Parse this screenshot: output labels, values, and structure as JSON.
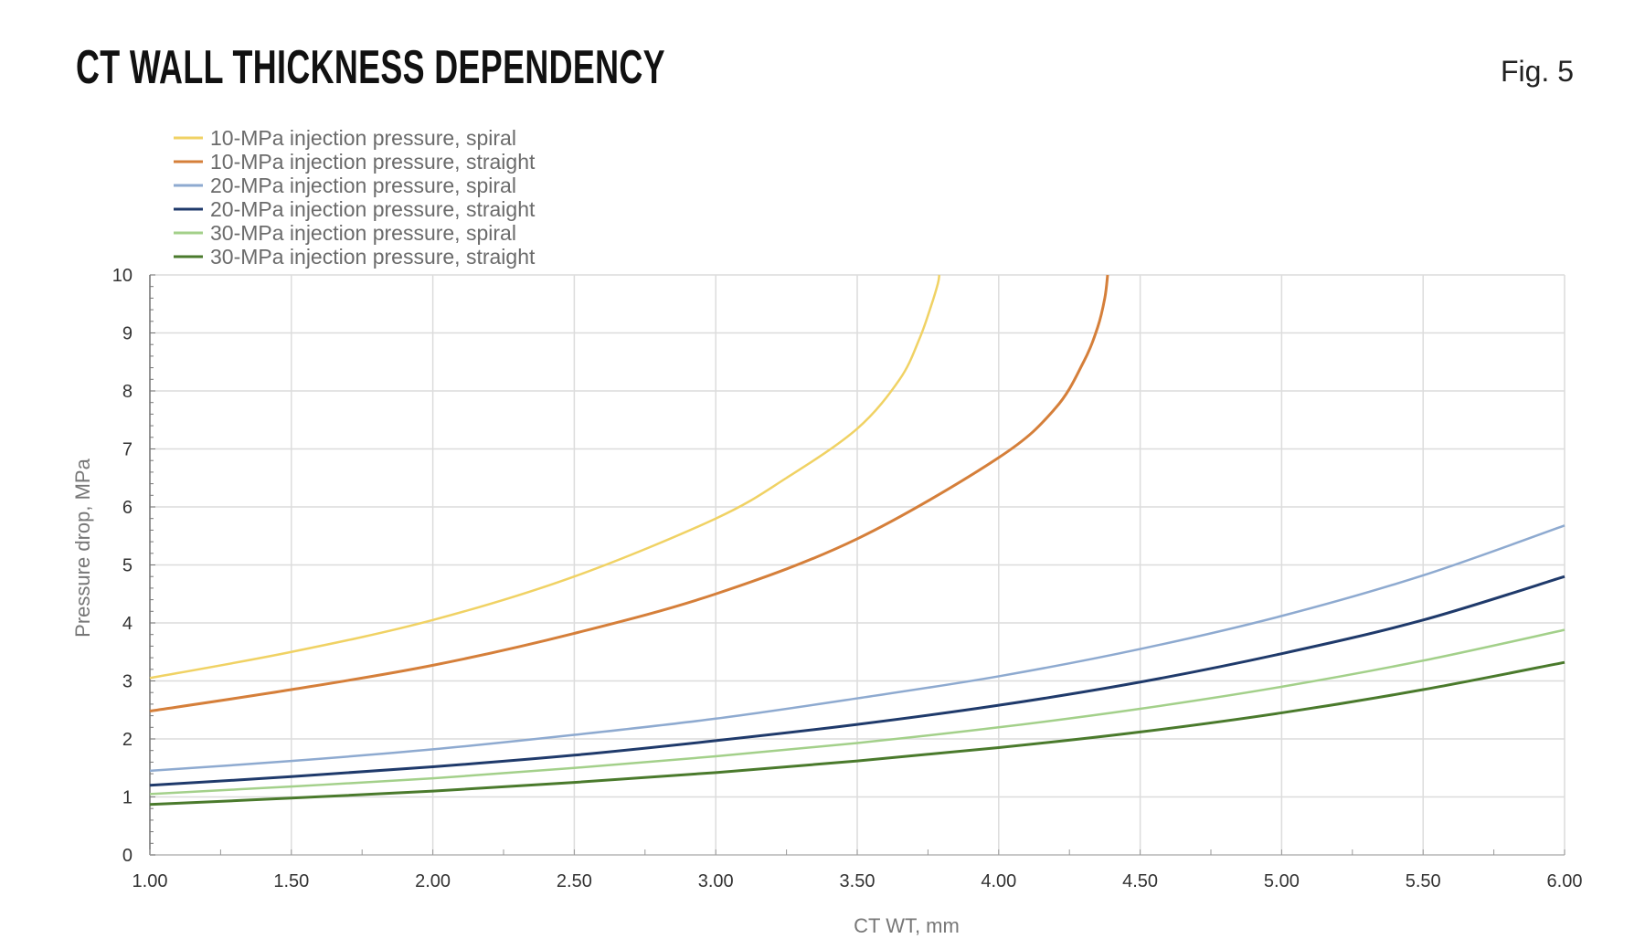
{
  "header": {
    "title": "CT WALL THICKNESS DEPENDENCY",
    "figure_label": "Fig. 5"
  },
  "chart_data": {
    "type": "line",
    "xlabel": "CT WT, mm",
    "ylabel": "Pressure drop, MPa",
    "xlim": [
      1,
      6
    ],
    "ylim": [
      0,
      10
    ],
    "xticks": [
      "1.00",
      "1.50",
      "2.00",
      "2.50",
      "3.00",
      "3.50",
      "4.00",
      "4.50",
      "5.00",
      "5.50",
      "6.00"
    ],
    "yticks": [
      "0",
      "1",
      "2",
      "3",
      "4",
      "5",
      "6",
      "7",
      "8",
      "9",
      "10"
    ],
    "grid": true,
    "legend_position": "top-left",
    "series": [
      {
        "name": "10-MPa injection pressure, spiral",
        "color": "#f0d264",
        "x": [
          1.0,
          1.5,
          2.0,
          2.5,
          3.0,
          3.25,
          3.5,
          3.65,
          3.72,
          3.76,
          3.785,
          3.79
        ],
        "y": [
          3.05,
          3.5,
          4.05,
          4.8,
          5.8,
          6.5,
          7.35,
          8.2,
          8.9,
          9.45,
          9.85,
          10
        ]
      },
      {
        "name": "10-MPa injection pressure, straight",
        "color": "#d57f3a",
        "x": [
          1.0,
          1.5,
          2.0,
          2.5,
          3.0,
          3.5,
          4.0,
          4.2,
          4.3,
          4.35,
          4.375,
          4.385
        ],
        "y": [
          2.48,
          2.85,
          3.27,
          3.82,
          4.5,
          5.45,
          6.85,
          7.7,
          8.5,
          9.1,
          9.6,
          10
        ]
      },
      {
        "name": "20-MPa injection pressure, spiral",
        "color": "#8eaad0",
        "x": [
          1.0,
          1.5,
          2.0,
          2.5,
          3.0,
          3.5,
          4.0,
          4.5,
          5.0,
          5.5,
          6.0
        ],
        "y": [
          1.45,
          1.62,
          1.82,
          2.07,
          2.35,
          2.7,
          3.08,
          3.55,
          4.12,
          4.82,
          5.68
        ]
      },
      {
        "name": "20-MPa injection pressure, straight",
        "color": "#1f3a6b",
        "x": [
          1.0,
          1.5,
          2.0,
          2.5,
          3.0,
          3.5,
          4.0,
          4.5,
          5.0,
          5.5,
          6.0
        ],
        "y": [
          1.2,
          1.35,
          1.52,
          1.72,
          1.97,
          2.25,
          2.58,
          2.98,
          3.47,
          4.05,
          4.8
        ]
      },
      {
        "name": "30-MPa injection pressure, spiral",
        "color": "#a3d08a",
        "x": [
          1.0,
          1.5,
          2.0,
          2.5,
          3.0,
          3.5,
          4.0,
          4.5,
          5.0,
          5.5,
          6.0
        ],
        "y": [
          1.05,
          1.18,
          1.32,
          1.5,
          1.7,
          1.93,
          2.2,
          2.52,
          2.9,
          3.35,
          3.88
        ]
      },
      {
        "name": "30-MPa injection pressure, straight",
        "color": "#4a7a2c",
        "x": [
          1.0,
          1.5,
          2.0,
          2.5,
          3.0,
          3.5,
          4.0,
          4.5,
          5.0,
          5.5,
          6.0
        ],
        "y": [
          0.87,
          0.98,
          1.1,
          1.25,
          1.42,
          1.62,
          1.85,
          2.12,
          2.45,
          2.85,
          3.32
        ]
      }
    ]
  }
}
